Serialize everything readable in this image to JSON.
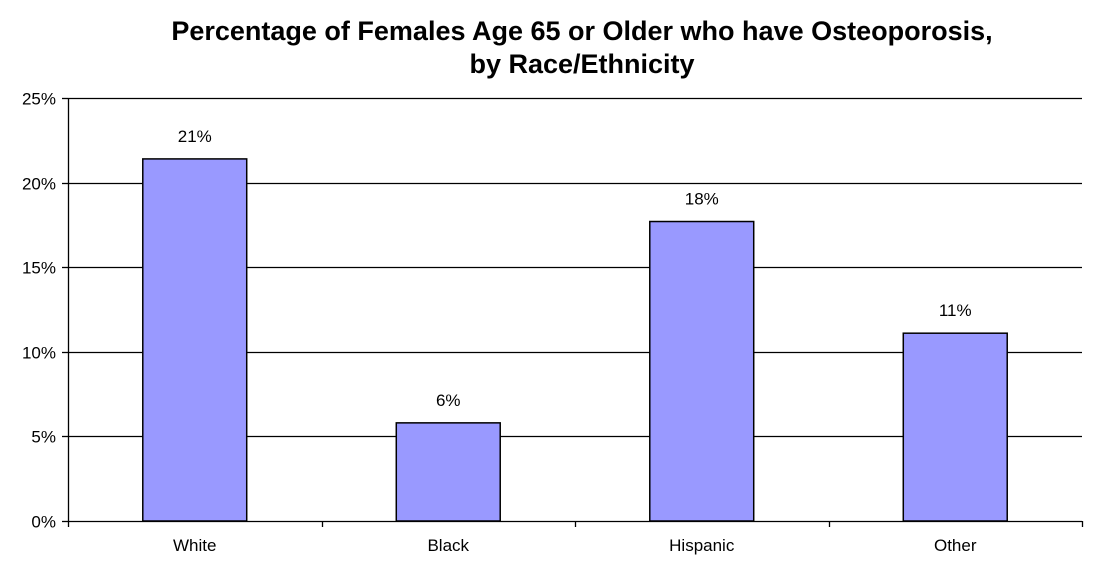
{
  "chart_data": {
    "type": "bar",
    "title_lines": [
      "Percentage of Females Age 65 or Older who have Osteoporosis,",
      "by Race/Ethnicity"
    ],
    "xlabel": "",
    "ylabel": "",
    "categories": [
      "White",
      "Black",
      "Hispanic",
      "Other"
    ],
    "values": [
      21.4,
      5.8,
      17.7,
      11.1
    ],
    "data_labels": [
      "21%",
      "6%",
      "18%",
      "11%"
    ],
    "ylim": [
      0,
      25
    ],
    "yticks": [
      0,
      5,
      10,
      15,
      20,
      25
    ],
    "ytick_labels": [
      "0%",
      "5%",
      "10%",
      "15%",
      "20%",
      "25%"
    ],
    "grid": true,
    "legend": "none",
    "bar_color": "#9999ff",
    "bar_edge_color": "#000000"
  }
}
